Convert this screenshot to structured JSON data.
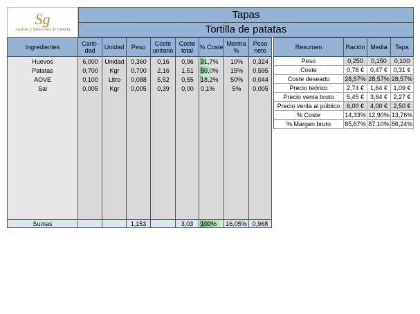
{
  "logo": {
    "mark": "Sg",
    "tagline": "Análisis y Soluciones de Gestión"
  },
  "header": {
    "title": "Tapas",
    "subtitle": "Tortilla de patatas"
  },
  "ingredients": {
    "columns": [
      "Ingredientes",
      "Canti-dad",
      "Unidad",
      "Peso",
      "Coste unitario",
      "Coste total",
      "% Coste",
      "Merma %",
      "Peso neto"
    ],
    "rows": [
      [
        "Huevos",
        "6,000",
        "Unidad",
        "0,360",
        "0,16",
        "0,96",
        {
          "value": 31.7,
          "label": "31,7%"
        },
        "10%",
        "0,324"
      ],
      [
        "Patatas",
        "0,700",
        "Kgr",
        "0,700",
        "2,16",
        "1,51",
        {
          "value": 50.0,
          "label": "50,0%"
        },
        "15%",
        "0,595"
      ],
      [
        "AOVE",
        "0,100",
        "Litro",
        "0,088",
        "5,52",
        "0,55",
        {
          "value": 18.2,
          "label": "18,2%"
        },
        "50%",
        "0,044"
      ],
      [
        "Sal",
        "0,005",
        "Kgr",
        "0,005",
        "0,39",
        "0,00",
        {
          "value": 0.1,
          "label": "0,1%"
        },
        "5%",
        "0,005"
      ]
    ],
    "totals": [
      "Sumas",
      null,
      null,
      "1,153",
      null,
      "3,03",
      {
        "value": 100,
        "label": "100%"
      },
      "16,05%",
      "0,968"
    ]
  },
  "summary": {
    "columns": [
      "Resumen",
      "Ración",
      "Media",
      "Tapa"
    ],
    "rows": [
      [
        "Peso",
        "0,250",
        "0,150",
        "0,100"
      ],
      [
        "Coste",
        "0,78 €",
        "0,47 €",
        "0,31 €"
      ],
      [
        "Coste deseado",
        "28,57%",
        "28,57%",
        "28,57%"
      ],
      [
        "Precio teórico",
        "2,74 €",
        "1,64 €",
        "1,09 €"
      ],
      [
        "Precio venta bruto",
        "5,45 €",
        "3,64 €",
        "2,27 €"
      ],
      [
        "Precio venta al público",
        "6,00 €",
        "4,00 €",
        "2,50 €"
      ],
      [
        "% Coste",
        "14,33%",
        "12,90%",
        "13,76%"
      ],
      [
        "% Margen bruto",
        "85,67%",
        "87,10%",
        "86,24%"
      ]
    ]
  }
}
